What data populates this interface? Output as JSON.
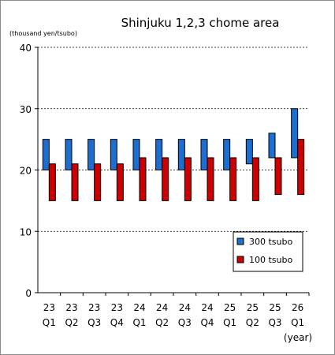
{
  "chart_data": {
    "type": "floating-bar",
    "title": "Shinjuku 1,2,3 chome area",
    "ylabel": "(thousand yen/tsubo)",
    "xlabel": "(year)",
    "ylim": [
      0,
      40
    ],
    "yticks": [
      0,
      10,
      20,
      30,
      40
    ],
    "categories": [
      {
        "year": "23",
        "quarter": "Q1"
      },
      {
        "year": "23",
        "quarter": "Q2"
      },
      {
        "year": "23",
        "quarter": "Q3"
      },
      {
        "year": "23",
        "quarter": "Q4"
      },
      {
        "year": "24",
        "quarter": "Q1"
      },
      {
        "year": "24",
        "quarter": "Q2"
      },
      {
        "year": "24",
        "quarter": "Q3"
      },
      {
        "year": "24",
        "quarter": "Q4"
      },
      {
        "year": "25",
        "quarter": "Q1"
      },
      {
        "year": "25",
        "quarter": "Q2"
      },
      {
        "year": "25",
        "quarter": "Q3"
      },
      {
        "year": "26",
        "quarter": "Q1"
      }
    ],
    "series": [
      {
        "name": "300 tsubo",
        "color": "#1c6fd1",
        "ranges": [
          [
            20,
            25
          ],
          [
            20,
            25
          ],
          [
            20,
            25
          ],
          [
            20,
            25
          ],
          [
            20,
            25
          ],
          [
            20,
            25
          ],
          [
            20,
            25
          ],
          [
            20,
            25
          ],
          [
            20,
            25
          ],
          [
            21,
            25
          ],
          [
            22,
            26
          ],
          [
            22,
            30
          ]
        ]
      },
      {
        "name": "100 tsubo",
        "color": "#cc0000",
        "ranges": [
          [
            15,
            21
          ],
          [
            15,
            21
          ],
          [
            15,
            21
          ],
          [
            15,
            21
          ],
          [
            15,
            22
          ],
          [
            15,
            22
          ],
          [
            15,
            22
          ],
          [
            15,
            22
          ],
          [
            15,
            22
          ],
          [
            15,
            22
          ],
          [
            16,
            22
          ],
          [
            16,
            25
          ]
        ]
      }
    ],
    "grid": true,
    "legend": "bottom-right"
  }
}
